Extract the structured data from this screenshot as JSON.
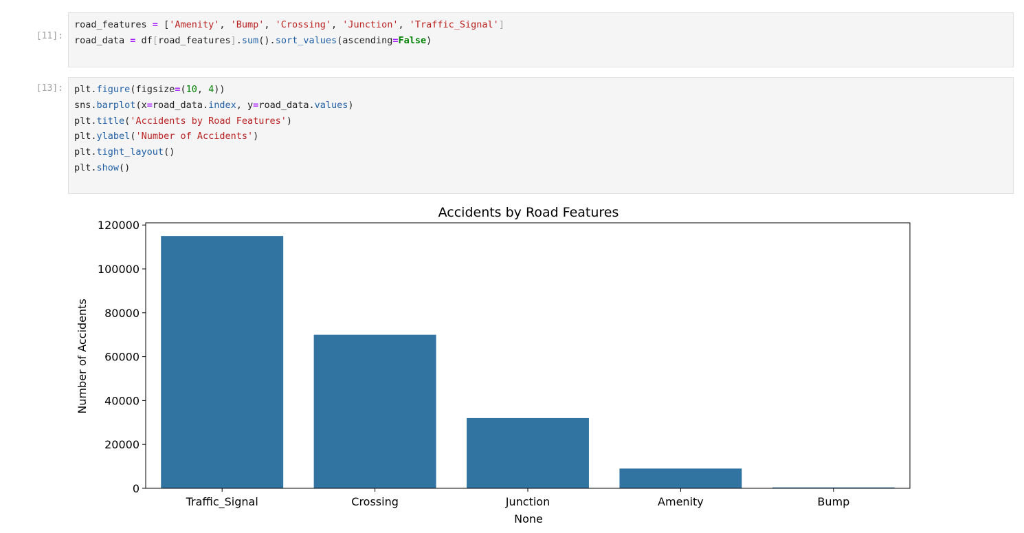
{
  "cells": [
    {
      "prompt": "[11]:",
      "lines": [
        [
          {
            "t": "road_features ",
            "c": "p"
          },
          {
            "t": "=",
            "c": "op"
          },
          {
            "t": " [",
            "c": "p"
          },
          {
            "t": "'Amenity'",
            "c": "str"
          },
          {
            "t": ", ",
            "c": "p"
          },
          {
            "t": "'Bump'",
            "c": "str"
          },
          {
            "t": ", ",
            "c": "p"
          },
          {
            "t": "'Crossing'",
            "c": "str"
          },
          {
            "t": ", ",
            "c": "p"
          },
          {
            "t": "'Junction'",
            "c": "str"
          },
          {
            "t": ", ",
            "c": "p"
          },
          {
            "t": "'Traffic_Signal'",
            "c": "str"
          },
          {
            "t": "]",
            "c": "brk"
          }
        ],
        [
          {
            "t": "road_data ",
            "c": "p"
          },
          {
            "t": "=",
            "c": "op"
          },
          {
            "t": " df",
            "c": "p"
          },
          {
            "t": "[",
            "c": "brk"
          },
          {
            "t": "road_features",
            "c": "p"
          },
          {
            "t": "]",
            "c": "brk"
          },
          {
            "t": ".",
            "c": "p"
          },
          {
            "t": "sum",
            "c": "attr"
          },
          {
            "t": "().",
            "c": "p"
          },
          {
            "t": "sort_values",
            "c": "attr"
          },
          {
            "t": "(ascending",
            "c": "p"
          },
          {
            "t": "=",
            "c": "op"
          },
          {
            "t": "False",
            "c": "kw"
          },
          {
            "t": ")",
            "c": "p"
          }
        ]
      ]
    },
    {
      "prompt": "[13]:",
      "lines": [
        [
          {
            "t": "plt",
            "c": "p"
          },
          {
            "t": ".",
            "c": "p"
          },
          {
            "t": "figure",
            "c": "attr"
          },
          {
            "t": "(figsize",
            "c": "p"
          },
          {
            "t": "=",
            "c": "op"
          },
          {
            "t": "(",
            "c": "p"
          },
          {
            "t": "10",
            "c": "num"
          },
          {
            "t": ", ",
            "c": "p"
          },
          {
            "t": "4",
            "c": "num"
          },
          {
            "t": "))",
            "c": "p"
          }
        ],
        [
          {
            "t": "sns",
            "c": "p"
          },
          {
            "t": ".",
            "c": "p"
          },
          {
            "t": "barplot",
            "c": "attr"
          },
          {
            "t": "(x",
            "c": "p"
          },
          {
            "t": "=",
            "c": "op"
          },
          {
            "t": "road_data",
            "c": "p"
          },
          {
            "t": ".",
            "c": "p"
          },
          {
            "t": "index",
            "c": "attr"
          },
          {
            "t": ", y",
            "c": "p"
          },
          {
            "t": "=",
            "c": "op"
          },
          {
            "t": "road_data",
            "c": "p"
          },
          {
            "t": ".",
            "c": "p"
          },
          {
            "t": "values",
            "c": "attr"
          },
          {
            "t": ")",
            "c": "p"
          }
        ],
        [
          {
            "t": "plt",
            "c": "p"
          },
          {
            "t": ".",
            "c": "p"
          },
          {
            "t": "title",
            "c": "attr"
          },
          {
            "t": "(",
            "c": "p"
          },
          {
            "t": "'Accidents by Road Features'",
            "c": "str"
          },
          {
            "t": ")",
            "c": "p"
          }
        ],
        [
          {
            "t": "plt",
            "c": "p"
          },
          {
            "t": ".",
            "c": "p"
          },
          {
            "t": "ylabel",
            "c": "attr"
          },
          {
            "t": "(",
            "c": "p"
          },
          {
            "t": "'Number of Accidents'",
            "c": "str"
          },
          {
            "t": ")",
            "c": "p"
          }
        ],
        [
          {
            "t": "plt",
            "c": "p"
          },
          {
            "t": ".",
            "c": "p"
          },
          {
            "t": "tight_layout",
            "c": "attr"
          },
          {
            "t": "()",
            "c": "p"
          }
        ],
        [
          {
            "t": "plt",
            "c": "p"
          },
          {
            "t": ".",
            "c": "p"
          },
          {
            "t": "show",
            "c": "attr"
          },
          {
            "t": "()",
            "c": "p"
          }
        ]
      ]
    }
  ],
  "colors": {
    "bar": "#3274a1",
    "string": "#ba2121",
    "operator": "#aa22ff",
    "attribute": "#1f5fa6",
    "number": "#008000",
    "keyword": "#008000",
    "prompt": "#a0a0a0",
    "cell_background": "#f5f5f5"
  },
  "chart_data": {
    "type": "bar",
    "title": "Accidents by Road Features",
    "xlabel": "None",
    "ylabel": "Number of Accidents",
    "categories": [
      "Traffic_Signal",
      "Crossing",
      "Junction",
      "Amenity",
      "Bump"
    ],
    "values": [
      115000,
      70000,
      32000,
      9000,
      400
    ],
    "ylim": [
      0,
      121000
    ],
    "yticks": [
      0,
      20000,
      40000,
      60000,
      80000,
      100000,
      120000
    ],
    "ytick_labels": [
      "0",
      "20000",
      "40000",
      "60000",
      "80000",
      "100000",
      "120000"
    ],
    "grid": false,
    "legend": "none"
  }
}
